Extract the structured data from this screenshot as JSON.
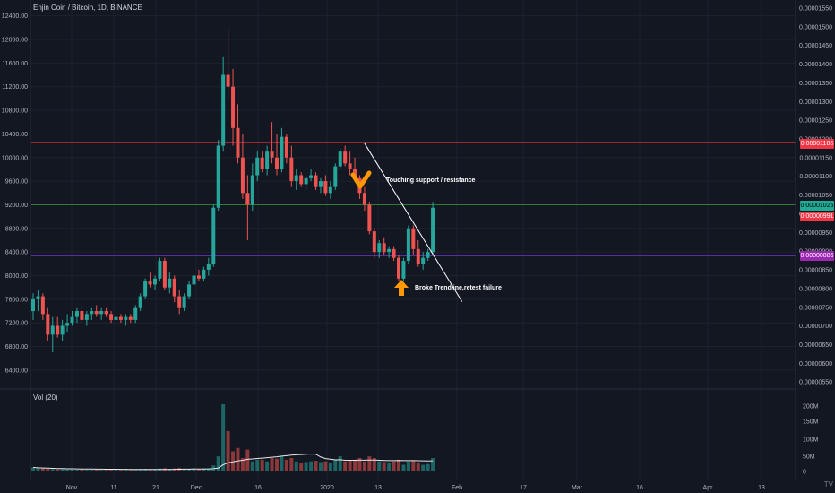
{
  "title": "Enjin Coin / Bitcoin, 1D, BINANCE",
  "volume_label": "Vol (20)",
  "logo_text": "TV",
  "annotations": {
    "support": "Touching support / resistance",
    "trendline": "Broke Trendline,retest failure"
  },
  "price_tags": {
    "red": {
      "text": "0.00001186",
      "color": "#f23645"
    },
    "green": {
      "text": "0.00001025",
      "color": "#22ab94"
    },
    "current": {
      "text": "0.00000991",
      "color": "#f23645"
    },
    "purple": {
      "text": "0.00000886",
      "color": "#9c27b0"
    }
  },
  "colors": {
    "up": "#26a69a",
    "down": "#ef5350",
    "background": "#131722",
    "grid": "#1e222d",
    "line_red": "#b22833",
    "line_green": "#2e7d32",
    "line_purple": "#5e35b1",
    "arrow": "#ff9800"
  },
  "chart_data": {
    "type": "candlestick",
    "left_axis_ticks": [
      "12400.00",
      "12000.00",
      "11600.00",
      "11200.00",
      "10800.00",
      "10400.00",
      "10000.00",
      "9600.00",
      "9200.00",
      "8800.00",
      "8400.00",
      "8000.00",
      "7600.00",
      "7200.00",
      "6800.00",
      "6400.00"
    ],
    "left_axis_values": [
      12400,
      12000,
      11600,
      11200,
      10800,
      10400,
      10000,
      9600,
      9200,
      8800,
      8400,
      8000,
      7600,
      7200,
      6800,
      6400
    ],
    "right_axis_ticks": [
      "0.00001550",
      "0.00001500",
      "0.00001450",
      "0.00001400",
      "0.00001350",
      "0.00001300",
      "0.00001250",
      "0.00001200",
      "0.00001150",
      "0.00001100",
      "0.00001050",
      "0.00001000",
      "0.00000950",
      "0.00000900",
      "0.00000850",
      "0.00000800",
      "0.00000750",
      "0.00000700",
      "0.00000650",
      "0.00000600",
      "0.00000550"
    ],
    "x_ticks": [
      "Nov",
      "11",
      "21",
      "Dec",
      "16",
      "2020",
      "13",
      "Feb",
      "17",
      "Mar",
      "16",
      "Apr",
      "13"
    ],
    "volume_ticks": [
      "200M",
      "150M",
      "100M",
      "50M",
      "0"
    ],
    "horizontal_levels": [
      {
        "value": 10260,
        "color": "red"
      },
      {
        "value": 9200,
        "color": "green"
      },
      {
        "value": 8335,
        "color": "purple"
      }
    ],
    "trendline": {
      "from": {
        "date": "2019-12-28",
        "value": 10240
      },
      "to": {
        "date": "2020-01-17",
        "value": 7560
      }
    },
    "candles": [
      [
        7400,
        7700,
        7250,
        7600
      ],
      [
        7600,
        7750,
        7400,
        7650
      ],
      [
        7650,
        7700,
        7250,
        7350
      ],
      [
        7350,
        7450,
        6900,
        7000
      ],
      [
        7000,
        7300,
        6700,
        7150
      ],
      [
        7150,
        7300,
        6950,
        7000
      ],
      [
        7000,
        7250,
        6900,
        7150
      ],
      [
        7150,
        7350,
        7050,
        7200
      ],
      [
        7200,
        7400,
        7150,
        7300
      ],
      [
        7300,
        7450,
        7200,
        7400
      ],
      [
        7400,
        7500,
        7200,
        7250
      ],
      [
        7250,
        7400,
        7150,
        7350
      ],
      [
        7350,
        7450,
        7250,
        7400
      ],
      [
        7400,
        7500,
        7300,
        7350
      ],
      [
        7350,
        7450,
        7250,
        7400
      ],
      [
        7400,
        7450,
        7300,
        7350
      ],
      [
        7350,
        7400,
        7200,
        7250
      ],
      [
        7250,
        7350,
        7150,
        7300
      ],
      [
        7300,
        7350,
        7200,
        7250
      ],
      [
        7250,
        7350,
        7150,
        7300
      ],
      [
        7300,
        7350,
        7200,
        7250
      ],
      [
        7250,
        7500,
        7200,
        7450
      ],
      [
        7450,
        7700,
        7400,
        7650
      ],
      [
        7650,
        7950,
        7600,
        7900
      ],
      [
        7900,
        8050,
        7800,
        7850
      ],
      [
        7850,
        8000,
        7750,
        7950
      ],
      [
        7950,
        8300,
        7900,
        8250
      ],
      [
        8250,
        8300,
        7750,
        7800
      ],
      [
        7800,
        8050,
        7700,
        7950
      ],
      [
        7950,
        8000,
        7550,
        7650
      ],
      [
        7650,
        7750,
        7350,
        7450
      ],
      [
        7450,
        7700,
        7400,
        7650
      ],
      [
        7650,
        7900,
        7600,
        7850
      ],
      [
        7850,
        8050,
        7800,
        8000
      ],
      [
        8000,
        8100,
        7900,
        7950
      ],
      [
        7950,
        8150,
        7900,
        8100
      ],
      [
        8100,
        8300,
        8000,
        8200
      ],
      [
        8200,
        9200,
        8150,
        9150
      ],
      [
        9150,
        10300,
        9100,
        10200
      ],
      [
        10200,
        11700,
        10100,
        11400
      ],
      [
        11400,
        12200,
        11000,
        11200
      ],
      [
        11200,
        11500,
        10200,
        10500
      ],
      [
        10500,
        10900,
        9900,
        10000
      ],
      [
        10000,
        10400,
        9300,
        9400
      ],
      [
        9400,
        9700,
        8600,
        9200
      ],
      [
        9200,
        9900,
        9100,
        9700
      ],
      [
        9700,
        10100,
        9600,
        10000
      ],
      [
        10000,
        10100,
        9750,
        9800
      ],
      [
        9800,
        10200,
        9700,
        10100
      ],
      [
        10100,
        10600,
        9900,
        10000
      ],
      [
        10000,
        10400,
        9700,
        9800
      ],
      [
        9800,
        10500,
        9750,
        10350
      ],
      [
        10350,
        10400,
        9900,
        10000
      ],
      [
        10000,
        10200,
        9500,
        9600
      ],
      [
        9600,
        9800,
        9450,
        9700
      ],
      [
        9700,
        9750,
        9500,
        9550
      ],
      [
        9550,
        9700,
        9450,
        9650
      ],
      [
        9650,
        9800,
        9600,
        9700
      ],
      [
        9700,
        9750,
        9450,
        9500
      ],
      [
        9500,
        9650,
        9400,
        9600
      ],
      [
        9600,
        9700,
        9350,
        9400
      ],
      [
        9400,
        9600,
        9300,
        9500
      ],
      [
        9500,
        9900,
        9450,
        9850
      ],
      [
        9850,
        10150,
        9800,
        10100
      ],
      [
        10100,
        10200,
        9850,
        9900
      ],
      [
        9900,
        10100,
        9700,
        9800
      ],
      [
        9800,
        10000,
        9600,
        9650
      ],
      [
        9650,
        9700,
        9300,
        9400
      ],
      [
        9400,
        9500,
        9100,
        9200
      ],
      [
        9200,
        9250,
        8700,
        8750
      ],
      [
        8750,
        8800,
        8300,
        8400
      ],
      [
        8400,
        8600,
        8300,
        8550
      ],
      [
        8550,
        8650,
        8350,
        8400
      ],
      [
        8400,
        8500,
        8300,
        8450
      ],
      [
        8450,
        8500,
        8250,
        8300
      ],
      [
        8300,
        8350,
        7900,
        7950
      ],
      [
        7950,
        8300,
        7900,
        8250
      ],
      [
        8250,
        8850,
        8200,
        8800
      ],
      [
        8800,
        8850,
        8350,
        8450
      ],
      [
        8450,
        8600,
        8150,
        8200
      ],
      [
        8200,
        8400,
        8100,
        8300
      ],
      [
        8300,
        8450,
        8250,
        8400
      ],
      [
        8400,
        9250,
        8350,
        9150
      ]
    ],
    "volumes": [
      12,
      10,
      9,
      8,
      7,
      6,
      7,
      6,
      6,
      5,
      6,
      5,
      5,
      6,
      5,
      5,
      6,
      5,
      5,
      6,
      5,
      6,
      7,
      8,
      6,
      7,
      9,
      10,
      8,
      9,
      11,
      8,
      8,
      9,
      8,
      9,
      9,
      18,
      45,
      200,
      120,
      60,
      70,
      40,
      65,
      30,
      35,
      35,
      30,
      40,
      38,
      45,
      35,
      40,
      30,
      25,
      28,
      30,
      32,
      28,
      30,
      25,
      35,
      45,
      30,
      32,
      35,
      40,
      30,
      45,
      40,
      30,
      28,
      25,
      30,
      35,
      20,
      30,
      32,
      25,
      20,
      22,
      40
    ]
  }
}
